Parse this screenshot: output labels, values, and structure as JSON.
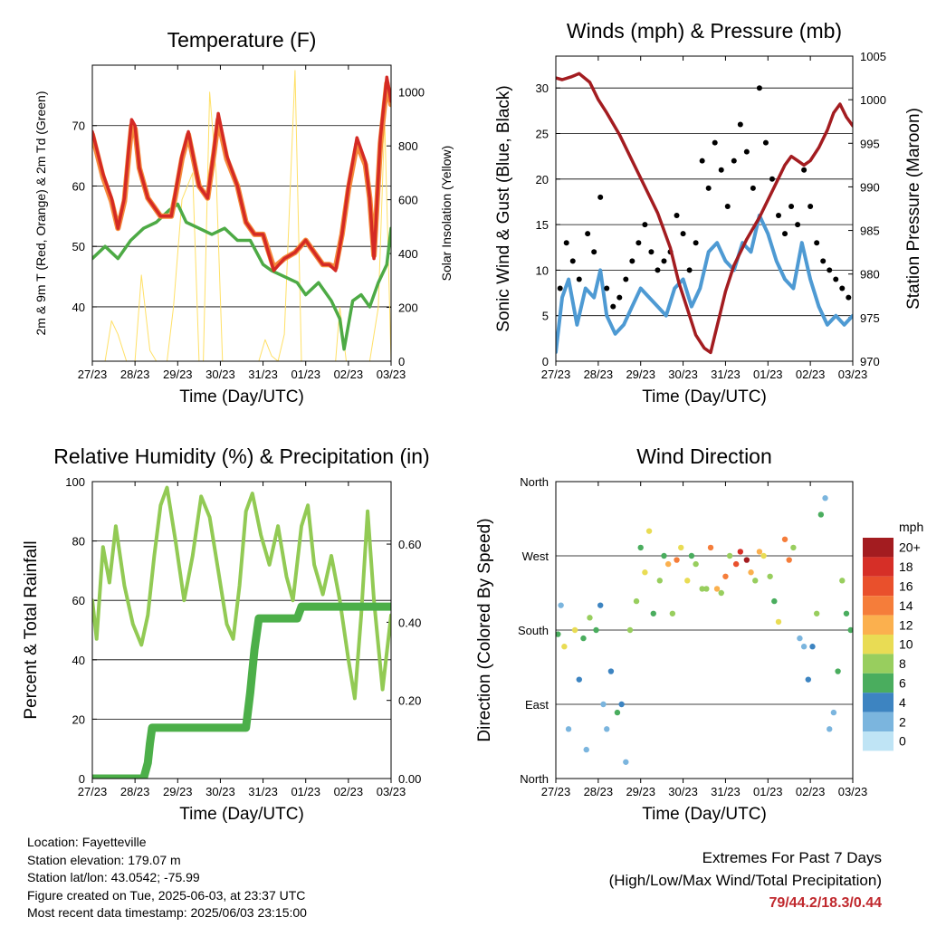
{
  "x_ticks": [
    "27/23",
    "28/23",
    "29/23",
    "30/23",
    "31/23",
    "01/23",
    "02/23",
    "03/23"
  ],
  "chart_data": [
    {
      "id": "temperature",
      "type": "line",
      "title": "Temperature (F)",
      "xlabel": "Time (Day/UTC)",
      "ylabel": "2m & 9m T (Red, Orange) & 2m Td (Green)",
      "ylabel_right": "Solar Insolation (Yellow)",
      "ylim": [
        31,
        80
      ],
      "yticks": [
        40,
        50,
        60,
        70
      ],
      "ylim_right": [
        0,
        1100
      ],
      "yticks_right": [
        0,
        200,
        400,
        600,
        800,
        1000
      ],
      "xlim": [
        0,
        7
      ],
      "series": [
        {
          "color": "#d42a24",
          "axis": "left",
          "x": [
            0,
            0.25,
            0.45,
            0.6,
            0.75,
            0.85,
            0.92,
            1.0,
            1.1,
            1.3,
            1.6,
            1.85,
            1.95,
            2.1,
            2.25,
            2.5,
            2.7,
            2.85,
            2.95,
            3.15,
            3.4,
            3.6,
            3.8,
            4.0,
            4.25,
            4.5,
            4.75,
            5.0,
            5.2,
            5.4,
            5.55,
            5.7,
            5.85,
            6.0,
            6.2,
            6.4,
            6.5,
            6.6,
            6.75,
            6.9,
            7.0
          ],
          "y": [
            69,
            62,
            58,
            53,
            58,
            66,
            71,
            70,
            63,
            58,
            55,
            55,
            59,
            65,
            69,
            60,
            58,
            66,
            72,
            65,
            60,
            54,
            52,
            52,
            46,
            48,
            49,
            51,
            49,
            47,
            47,
            46,
            52,
            60,
            68,
            64,
            58,
            48,
            68,
            78,
            74
          ]
        },
        {
          "color": "#f58a3c",
          "axis": "left",
          "x": [
            0,
            0.25,
            0.45,
            0.6,
            0.75,
            0.85,
            0.92,
            1.0,
            1.1,
            1.3,
            1.6,
            1.85,
            1.95,
            2.1,
            2.25,
            2.5,
            2.7,
            2.85,
            2.95,
            3.15,
            3.4,
            3.6,
            3.8,
            4.0,
            4.25,
            4.5,
            4.75,
            5.0,
            5.2,
            5.4,
            5.55,
            5.7,
            5.85,
            6.0,
            6.2,
            6.4,
            6.5,
            6.6,
            6.75,
            6.9,
            7.0
          ],
          "y": [
            68.5,
            61.5,
            57.5,
            53,
            57.5,
            65,
            70,
            69.5,
            63,
            58,
            55,
            55,
            58.5,
            64.5,
            68.5,
            60,
            58,
            65.5,
            71,
            64.5,
            60,
            54,
            52,
            52,
            46.5,
            48,
            49,
            51,
            49,
            47,
            47,
            46.5,
            52,
            59.5,
            67,
            63.5,
            58,
            48.5,
            67,
            77,
            73.5
          ]
        },
        {
          "color": "#4daa45",
          "axis": "left",
          "x": [
            0,
            0.3,
            0.6,
            0.9,
            1.2,
            1.5,
            1.8,
            2.0,
            2.2,
            2.5,
            2.8,
            3.1,
            3.4,
            3.7,
            4.0,
            4.2,
            4.5,
            4.8,
            5.0,
            5.3,
            5.6,
            5.8,
            5.9,
            6.1,
            6.3,
            6.5,
            6.7,
            6.9,
            7.0
          ],
          "y": [
            48,
            50,
            48,
            51,
            53,
            54,
            56,
            57,
            54,
            53,
            52,
            53,
            51,
            51,
            47,
            46,
            45,
            44,
            42,
            44,
            41,
            38,
            33,
            41,
            42,
            40,
            44,
            47,
            53
          ]
        },
        {
          "color": "#ffe066",
          "axis": "right",
          "x": [
            0,
            0.3,
            0.45,
            0.6,
            0.8,
            1.0,
            1.15,
            1.35,
            1.5,
            1.75,
            1.9,
            2.1,
            2.35,
            2.5,
            2.6,
            2.75,
            2.9,
            3.05,
            3.2,
            3.35,
            3.5,
            3.75,
            3.9,
            4.05,
            4.2,
            4.35,
            4.5,
            4.75,
            4.9,
            5.0,
            5.15,
            5.3,
            5.55,
            5.7,
            5.8,
            5.95,
            6.15,
            6.3,
            6.5,
            6.7,
            6.85,
            7.0
          ],
          "y": [
            0,
            0,
            150,
            100,
            0,
            0,
            320,
            40,
            0,
            0,
            200,
            600,
            700,
            0,
            0,
            1000,
            700,
            0,
            0,
            0,
            0,
            0,
            0,
            80,
            20,
            0,
            100,
            1080,
            0,
            0,
            0,
            0,
            0,
            0,
            200,
            0,
            0,
            0,
            0,
            200,
            900,
            0
          ]
        }
      ]
    },
    {
      "id": "winds",
      "type": "line",
      "title": "Winds (mph) & Pressure (mb)",
      "xlabel": "Time (Day/UTC)",
      "ylabel": "Sonic Wind & Gust (Blue, Black)",
      "ylabel_right": "Station Pressure (Maroon)",
      "ylim": [
        0,
        33.5
      ],
      "yticks": [
        0,
        5,
        10,
        15,
        20,
        25,
        30
      ],
      "ylim_right": [
        970,
        1005
      ],
      "yticks_right": [
        970,
        975,
        980,
        985,
        990,
        995,
        1000,
        1005
      ],
      "xlim": [
        0,
        7
      ],
      "series": [
        {
          "color": "#000000",
          "axis": "left",
          "style": "scatter",
          "x": [
            0.1,
            0.25,
            0.4,
            0.55,
            0.75,
            0.9,
            1.05,
            1.2,
            1.35,
            1.5,
            1.65,
            1.8,
            1.95,
            2.1,
            2.25,
            2.4,
            2.55,
            2.7,
            2.85,
            3.0,
            3.15,
            3.3,
            3.45,
            3.6,
            3.75,
            3.9,
            4.05,
            4.2,
            4.35,
            4.5,
            4.65,
            4.8,
            4.95,
            5.1,
            5.25,
            5.4,
            5.55,
            5.7,
            5.85,
            6.0,
            6.15,
            6.3,
            6.45,
            6.6,
            6.75,
            6.9
          ],
          "y": [
            8,
            13,
            11,
            9,
            14,
            12,
            18,
            8,
            6,
            7,
            9,
            11,
            13,
            15,
            12,
            10,
            11,
            12,
            16,
            14,
            10,
            13,
            22,
            19,
            24,
            21,
            17,
            22,
            26,
            23,
            19,
            30,
            24,
            20,
            16,
            14,
            17,
            15,
            21,
            17,
            13,
            11,
            10,
            9,
            8,
            7
          ]
        },
        {
          "color": "#4e9ad3",
          "axis": "left",
          "x": [
            0,
            0.15,
            0.3,
            0.5,
            0.7,
            0.9,
            1.05,
            1.2,
            1.4,
            1.6,
            1.8,
            2.0,
            2.2,
            2.4,
            2.6,
            2.8,
            3.0,
            3.2,
            3.4,
            3.6,
            3.8,
            4.0,
            4.2,
            4.4,
            4.6,
            4.8,
            5.0,
            5.2,
            5.4,
            5.6,
            5.8,
            6.0,
            6.2,
            6.4,
            6.6,
            6.8,
            7.0
          ],
          "y": [
            1,
            7,
            9,
            4,
            8,
            7,
            10,
            5,
            3,
            4,
            6,
            8,
            7,
            6,
            5,
            8,
            9,
            6,
            8,
            12,
            13,
            11,
            10,
            13,
            12,
            16,
            14,
            11,
            9,
            8,
            13,
            9,
            6,
            4,
            5,
            4,
            5
          ]
        },
        {
          "color": "#a31c20",
          "axis": "left",
          "pressure_mb": true,
          "x": [
            0,
            0.15,
            0.35,
            0.55,
            0.8,
            1.0,
            1.2,
            1.5,
            1.8,
            2.1,
            2.4,
            2.7,
            2.9,
            3.1,
            3.3,
            3.5,
            3.65,
            3.75,
            3.85,
            4.0,
            4.2,
            4.5,
            4.8,
            5.0,
            5.2,
            5.4,
            5.55,
            5.7,
            5.85,
            6.0,
            6.2,
            6.4,
            6.55,
            6.7,
            6.85,
            7.0
          ],
          "y": [
            1002.5,
            1002.3,
            1002.6,
            1003,
            1002,
            1000,
            998.5,
            996,
            993,
            990,
            987,
            983,
            979,
            976,
            973,
            971.5,
            971,
            973,
            975,
            978,
            981,
            984,
            986.5,
            988.5,
            990.5,
            992.5,
            993.5,
            993,
            992.5,
            993,
            994.5,
            996.5,
            998.5,
            999.5,
            998,
            997
          ]
        }
      ]
    },
    {
      "id": "humidity",
      "type": "line",
      "title": "Relative Humidity (%) & Precipitation (in)",
      "xlabel": "Time (Day/UTC)",
      "ylabel": "Percent & Total Rainfall",
      "ylim": [
        0,
        100
      ],
      "yticks": [
        0,
        20,
        40,
        60,
        80,
        100
      ],
      "ylim_right": [
        0,
        0.76
      ],
      "yticks_right": [
        "0.00",
        "0.20",
        "0.40",
        "0.60"
      ],
      "xlim": [
        0,
        7
      ],
      "series": [
        {
          "color": "#92ca54",
          "axis": "left",
          "x": [
            0,
            0.1,
            0.25,
            0.4,
            0.55,
            0.75,
            0.95,
            1.15,
            1.3,
            1.45,
            1.6,
            1.75,
            1.95,
            2.15,
            2.35,
            2.55,
            2.75,
            2.95,
            3.15,
            3.3,
            3.45,
            3.6,
            3.75,
            3.95,
            4.15,
            4.35,
            4.55,
            4.7,
            4.9,
            5.05,
            5.2,
            5.4,
            5.6,
            5.8,
            6.0,
            6.15,
            6.3,
            6.45,
            6.6,
            6.8,
            7.0
          ],
          "y": [
            60,
            47,
            78,
            66,
            85,
            65,
            52,
            45,
            55,
            75,
            92,
            98,
            80,
            60,
            75,
            95,
            88,
            70,
            52,
            47,
            65,
            90,
            96,
            82,
            72,
            85,
            68,
            60,
            85,
            92,
            72,
            62,
            75,
            60,
            40,
            27,
            55,
            90,
            60,
            30,
            55
          ]
        },
        {
          "color": "#4caf49",
          "axis": "right",
          "x": [
            0,
            1.2,
            1.3,
            1.35,
            1.4,
            3.6,
            3.7,
            3.8,
            3.9,
            4.8,
            4.9,
            7.0
          ],
          "y": [
            0,
            0,
            0.04,
            0.09,
            0.13,
            0.13,
            0.22,
            0.33,
            0.41,
            0.41,
            0.44,
            0.44
          ]
        }
      ]
    },
    {
      "id": "winddir",
      "type": "scatter",
      "title": "Wind Direction",
      "xlabel": "Time (Day/UTC)",
      "ylabel": "Direction (Colored By Speed)",
      "ylim": [
        0,
        360
      ],
      "yticks": [
        "North",
        "East",
        "South",
        "West",
        "North"
      ],
      "xlim": [
        0,
        7
      ],
      "legend_title": "mph",
      "legend_labels": [
        "20+",
        "18",
        "16",
        "14",
        "12",
        "10",
        "8",
        "6",
        "4",
        "2",
        "0"
      ],
      "legend_colors": [
        "#a31c20",
        "#d62f27",
        "#e9502c",
        "#f57d3a",
        "#fbb04e",
        "#e9dc54",
        "#98ce5e",
        "#4aad5e",
        "#3d84c1",
        "#7bb5de",
        "#bfe4f5"
      ],
      "x": [
        0.05,
        0.12,
        0.2,
        0.3,
        0.45,
        0.55,
        0.65,
        0.72,
        0.8,
        0.95,
        1.05,
        1.12,
        1.2,
        1.3,
        1.45,
        1.55,
        1.65,
        1.75,
        1.9,
        2.0,
        2.1,
        2.2,
        2.3,
        2.45,
        2.55,
        2.65,
        2.75,
        2.85,
        2.95,
        3.1,
        3.2,
        3.3,
        3.45,
        3.55,
        3.65,
        3.8,
        3.9,
        4.0,
        4.1,
        4.25,
        4.35,
        4.5,
        4.6,
        4.7,
        4.8,
        4.9,
        5.05,
        5.15,
        5.25,
        5.4,
        5.5,
        5.6,
        5.75,
        5.85,
        5.95,
        6.05,
        6.15,
        6.25,
        6.35,
        6.45,
        6.55,
        6.65,
        6.75,
        6.85,
        6.95
      ],
      "y": [
        175,
        210,
        160,
        60,
        180,
        120,
        170,
        35,
        195,
        180,
        210,
        90,
        60,
        130,
        80,
        90,
        20,
        180,
        215,
        280,
        250,
        300,
        200,
        240,
        270,
        260,
        200,
        265,
        280,
        240,
        270,
        260,
        230,
        230,
        280,
        230,
        225,
        245,
        270,
        260,
        275,
        265,
        250,
        240,
        275,
        270,
        245,
        215,
        190,
        290,
        265,
        280,
        170,
        160,
        120,
        160,
        200,
        320,
        340,
        60,
        80,
        130,
        240,
        200,
        180
      ],
      "speed": [
        5,
        2,
        9,
        1,
        10,
        3,
        6,
        2,
        8,
        6,
        4,
        1,
        2,
        3,
        5,
        4,
        2,
        7,
        8,
        6,
        9,
        10,
        5,
        7,
        6,
        12,
        7,
        14,
        9,
        10,
        6,
        8,
        7,
        8,
        14,
        11,
        7,
        13,
        8,
        15,
        17,
        20,
        11,
        8,
        12,
        9,
        8,
        6,
        9,
        14,
        13,
        8,
        2,
        1,
        3,
        3,
        7,
        5,
        2,
        1,
        2,
        6,
        8,
        6,
        5
      ]
    }
  ],
  "station": {
    "location": "Location: Fayetteville",
    "elevation": "Station elevation: 179.07 m",
    "latlon": "Station lat/lon: 43.0542; -75.99",
    "created": "Figure created on Tue, 2025-06-03, at 23:37 UTC",
    "recent": "Most recent data timestamp: 2025/06/03 23:15:00"
  },
  "extremes": {
    "title": "Extremes For Past 7 Days",
    "subtitle": "(High/Low/Max Wind/Total Precipitation)",
    "values": "79/44.2/18.3/0.44"
  }
}
